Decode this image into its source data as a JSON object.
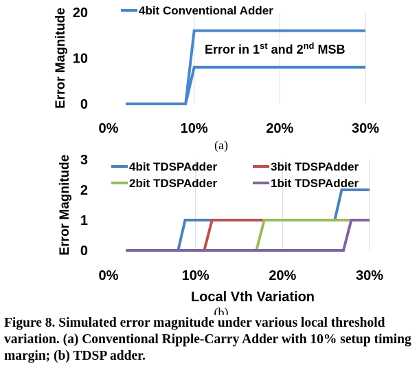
{
  "chart_data": [
    {
      "type": "line",
      "panel_label": "(a)",
      "ylabel": "Error Magnitude",
      "xlabel": "",
      "xlim": [
        0,
        30
      ],
      "ylim": [
        0,
        20
      ],
      "x_ticks": [
        "0%",
        "10%",
        "20%",
        "30%"
      ],
      "y_ticks": [
        "0",
        "10",
        "20"
      ],
      "grid": "vertical",
      "legend_position": "top",
      "annotation": {
        "pre": "Error in 1",
        "sup1": "st",
        "mid": " and 2",
        "sup2": "nd",
        "post": " MSB"
      },
      "series": [
        {
          "name": "4bit Conventional Adder",
          "color": "#4a86c8",
          "points": [
            [
              2,
              0
            ],
            [
              9,
              0
            ],
            [
              10,
              8
            ],
            [
              30,
              8
            ]
          ]
        },
        {
          "name": "",
          "color": "#4a86c8",
          "points": [
            [
              9,
              0
            ],
            [
              10,
              16
            ],
            [
              30,
              16
            ]
          ]
        }
      ]
    },
    {
      "type": "line",
      "panel_label": "(b)",
      "ylabel": "Error Magnitude",
      "xlabel": "Local Vth Variation",
      "xlim": [
        0,
        30
      ],
      "ylim": [
        0,
        3
      ],
      "x_ticks": [
        "0%",
        "10%",
        "20%",
        "30%"
      ],
      "y_ticks": [
        "0",
        "1",
        "2",
        "3"
      ],
      "grid": "vertical",
      "legend_position": "top",
      "series": [
        {
          "name": "4bit TDSPAdder",
          "color": "#4f81bd",
          "points": [
            [
              2,
              0
            ],
            [
              8,
              0
            ],
            [
              8.8,
              1
            ],
            [
              26,
              1
            ],
            [
              26.8,
              2
            ],
            [
              30,
              2
            ]
          ]
        },
        {
          "name": "3bit TDSPAdder",
          "color": "#c0504d",
          "points": [
            [
              2,
              0
            ],
            [
              11,
              0
            ],
            [
              11.9,
              1
            ],
            [
              30,
              1
            ]
          ]
        },
        {
          "name": "2bit TDSPAdder",
          "color": "#9bbb59",
          "points": [
            [
              2,
              0
            ],
            [
              17,
              0
            ],
            [
              17.9,
              1
            ],
            [
              30,
              1
            ]
          ]
        },
        {
          "name": "1bit TDSPAdder",
          "color": "#8064a2",
          "points": [
            [
              2,
              0
            ],
            [
              27,
              0
            ],
            [
              27.9,
              1
            ],
            [
              30,
              1
            ]
          ]
        }
      ]
    }
  ],
  "caption": "Figure 8. Simulated error magnitude under various local threshold variation. (a) Conventional Ripple-Carry Adder with 10% setup timing margin; (b) TDSP adder."
}
